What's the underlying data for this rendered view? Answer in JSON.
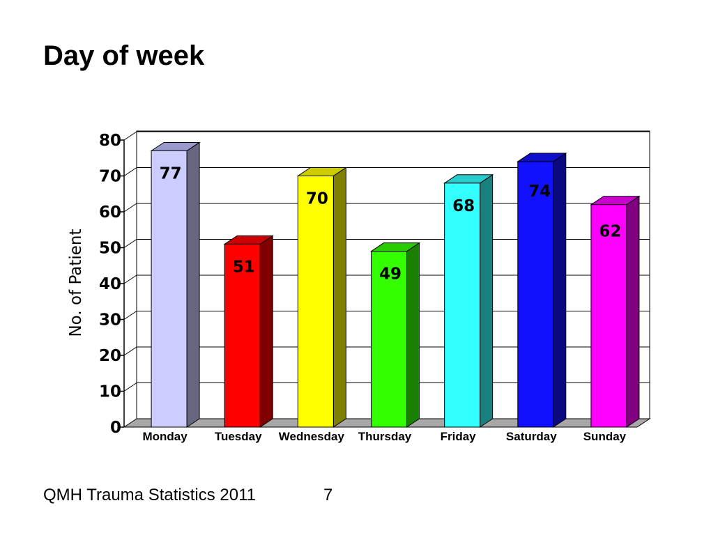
{
  "slide": {
    "title": "Day of week",
    "footer_text": "QMH Trauma Statistics 2011",
    "page_number": "7"
  },
  "chart_data": {
    "type": "bar",
    "title": "",
    "xlabel": "",
    "ylabel": "No. of Patient",
    "categories": [
      "Monday",
      "Tuesday",
      "Wednesday",
      "Thursday",
      "Friday",
      "Saturday",
      "Sunday"
    ],
    "values": [
      77,
      51,
      70,
      49,
      68,
      74,
      62
    ],
    "data_labels": [
      "77",
      "51",
      "70",
      "49",
      "68",
      "74",
      "62"
    ],
    "ylim": [
      0,
      80
    ],
    "yticks": [
      0,
      10,
      20,
      30,
      40,
      50,
      60,
      70,
      80
    ],
    "grid": true,
    "legend": "none",
    "colors": [
      "#ccccff",
      "#ff0000",
      "#ffff00",
      "#33ff00",
      "#33ffff",
      "#1111ff",
      "#ff00ff"
    ],
    "side_colors": [
      "#666680",
      "#800000",
      "#808000",
      "#1a8000",
      "#1a8080",
      "#0a0a80",
      "#800080"
    ],
    "top_colors": [
      "#9999cc",
      "#cc0000",
      "#cccc00",
      "#29cc00",
      "#29cccc",
      "#0e0ecc",
      "#cc00cc"
    ],
    "style": "3d"
  }
}
